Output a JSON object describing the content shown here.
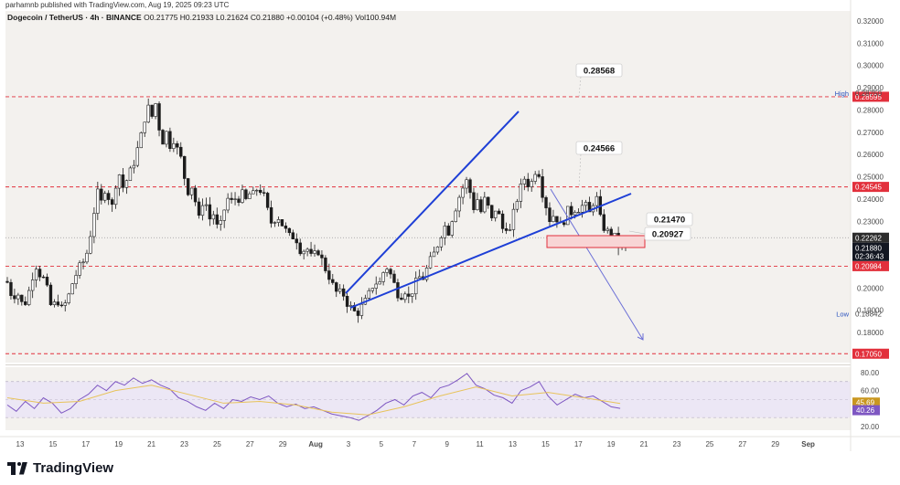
{
  "header": {
    "publisher": "parhamnb published with TradingView.com, Aug 19, 2025 09:23 UTC"
  },
  "symbol_line": {
    "name": "Dogecoin / TetherUS · 4h · BINANCE",
    "ohlc": "O0.21775 H0.21933 L0.21624 C0.21880 +0.00104 (+0.48%) Vol100.94M"
  },
  "branding": {
    "logo_text": "TradingView"
  },
  "colors": {
    "background": "#f3f1ee",
    "candle": "#1c1c1c",
    "trendline": "#1e3fd6",
    "level_line": "#e2303c",
    "level_label_bg": "#e2303c",
    "arrow": "#6b6fd6",
    "rsi_line": "#7e57c2",
    "rsi_ma": "#e8c35a",
    "rsi_band": "#ece7f5",
    "zone_fill": "#f8d5d5",
    "zone_border": "#e2303c"
  },
  "chart_data": {
    "type": "candlestick",
    "x_ticks": [
      "13",
      "15",
      "17",
      "19",
      "21",
      "23",
      "25",
      "27",
      "29",
      "Aug",
      "3",
      "5",
      "7",
      "9",
      "11",
      "13",
      "15",
      "17",
      "19",
      "21",
      "23",
      "25",
      "27",
      "29",
      "Sep"
    ],
    "y_ticks": [
      "0.32000",
      "0.31000",
      "0.30000",
      "0.29000",
      "0.28000",
      "0.27000",
      "0.26000",
      "0.25000",
      "0.24000",
      "0.23000",
      "0.22000",
      "0.21000",
      "0.20000",
      "0.19000",
      "0.18000",
      "0.17000"
    ],
    "y_range": [
      0.1665,
      0.3245
    ],
    "price_path": [
      [
        0,
        0.203
      ],
      [
        3,
        0.198
      ],
      [
        7,
        0.199
      ],
      [
        10,
        0.205
      ],
      [
        14,
        0.2
      ],
      [
        18,
        0.195
      ],
      [
        22,
        0.199
      ],
      [
        26,
        0.195
      ],
      [
        30,
        0.191
      ],
      [
        34,
        0.197
      ],
      [
        38,
        0.201
      ],
      [
        42,
        0.212
      ],
      [
        46,
        0.207
      ],
      [
        50,
        0.205
      ],
      [
        54,
        0.203
      ],
      [
        58,
        0.193
      ],
      [
        62,
        0.191
      ],
      [
        66,
        0.196
      ],
      [
        70,
        0.19
      ],
      [
        74,
        0.192
      ],
      [
        78,
        0.195
      ],
      [
        82,
        0.201
      ],
      [
        86,
        0.205
      ],
      [
        90,
        0.209
      ],
      [
        94,
        0.211
      ],
      [
        98,
        0.214
      ],
      [
        102,
        0.222
      ],
      [
        106,
        0.232
      ],
      [
        110,
        0.244
      ],
      [
        114,
        0.237
      ],
      [
        118,
        0.245
      ],
      [
        122,
        0.242
      ],
      [
        126,
        0.235
      ],
      [
        130,
        0.246
      ],
      [
        134,
        0.252
      ],
      [
        138,
        0.245
      ],
      [
        142,
        0.248
      ],
      [
        146,
        0.252
      ],
      [
        150,
        0.256
      ],
      [
        154,
        0.262
      ],
      [
        158,
        0.268
      ],
      [
        162,
        0.276
      ],
      [
        166,
        0.281
      ],
      [
        170,
        0.277
      ],
      [
        174,
        0.283
      ],
      [
        178,
        0.272
      ],
      [
        182,
        0.266
      ],
      [
        186,
        0.27
      ],
      [
        190,
        0.264
      ],
      [
        194,
        0.267
      ],
      [
        198,
        0.262
      ],
      [
        202,
        0.258
      ],
      [
        206,
        0.249
      ],
      [
        210,
        0.243
      ],
      [
        214,
        0.246
      ],
      [
        218,
        0.238
      ],
      [
        222,
        0.23
      ],
      [
        226,
        0.24
      ],
      [
        230,
        0.237
      ],
      [
        234,
        0.23
      ],
      [
        238,
        0.234
      ],
      [
        242,
        0.226
      ],
      [
        246,
        0.229
      ],
      [
        250,
        0.237
      ],
      [
        254,
        0.241
      ],
      [
        258,
        0.238
      ],
      [
        262,
        0.241
      ],
      [
        266,
        0.24
      ],
      [
        270,
        0.243
      ],
      [
        274,
        0.238
      ],
      [
        278,
        0.244
      ],
      [
        282,
        0.241
      ],
      [
        286,
        0.246
      ],
      [
        290,
        0.243
      ],
      [
        294,
        0.24
      ],
      [
        298,
        0.232
      ],
      [
        302,
        0.228
      ],
      [
        306,
        0.233
      ],
      [
        310,
        0.231
      ],
      [
        314,
        0.227
      ],
      [
        318,
        0.225
      ],
      [
        322,
        0.222
      ],
      [
        326,
        0.224
      ],
      [
        330,
        0.22
      ],
      [
        334,
        0.215
      ],
      [
        338,
        0.219
      ],
      [
        342,
        0.216
      ],
      [
        346,
        0.212
      ],
      [
        350,
        0.218
      ],
      [
        354,
        0.215
      ],
      [
        358,
        0.21
      ],
      [
        362,
        0.207
      ],
      [
        366,
        0.203
      ],
      [
        370,
        0.199
      ],
      [
        374,
        0.197
      ],
      [
        378,
        0.199
      ],
      [
        382,
        0.194
      ],
      [
        386,
        0.192
      ],
      [
        390,
        0.19
      ],
      [
        394,
        0.188
      ],
      [
        398,
        0.191
      ],
      [
        402,
        0.193
      ],
      [
        406,
        0.196
      ],
      [
        410,
        0.2
      ],
      [
        414,
        0.203
      ],
      [
        418,
        0.201
      ],
      [
        422,
        0.206
      ],
      [
        426,
        0.21
      ],
      [
        430,
        0.207
      ],
      [
        434,
        0.203
      ],
      [
        438,
        0.198
      ],
      [
        442,
        0.196
      ],
      [
        446,
        0.2
      ],
      [
        450,
        0.195
      ],
      [
        454,
        0.198
      ],
      [
        458,
        0.202
      ],
      [
        462,
        0.205
      ],
      [
        466,
        0.204
      ],
      [
        470,
        0.208
      ],
      [
        474,
        0.212
      ],
      [
        478,
        0.215
      ],
      [
        482,
        0.219
      ],
      [
        486,
        0.224
      ],
      [
        490,
        0.228
      ],
      [
        494,
        0.225
      ],
      [
        498,
        0.231
      ],
      [
        502,
        0.236
      ],
      [
        506,
        0.241
      ],
      [
        510,
        0.245
      ],
      [
        514,
        0.248
      ],
      [
        518,
        0.243
      ],
      [
        522,
        0.236
      ],
      [
        526,
        0.24
      ],
      [
        530,
        0.234
      ],
      [
        534,
        0.24
      ],
      [
        538,
        0.236
      ],
      [
        542,
        0.23
      ],
      [
        546,
        0.236
      ],
      [
        550,
        0.232
      ],
      [
        554,
        0.226
      ],
      [
        558,
        0.228
      ],
      [
        562,
        0.225
      ],
      [
        566,
        0.235
      ],
      [
        570,
        0.241
      ],
      [
        574,
        0.246
      ],
      [
        578,
        0.25
      ],
      [
        582,
        0.246
      ],
      [
        586,
        0.248
      ],
      [
        590,
        0.254
      ],
      [
        594,
        0.251
      ],
      [
        598,
        0.24
      ],
      [
        602,
        0.236
      ],
      [
        606,
        0.229
      ],
      [
        610,
        0.234
      ],
      [
        614,
        0.23
      ],
      [
        618,
        0.227
      ],
      [
        622,
        0.232
      ],
      [
        626,
        0.236
      ],
      [
        630,
        0.233
      ],
      [
        634,
        0.237
      ],
      [
        638,
        0.235
      ],
      [
        642,
        0.238
      ],
      [
        646,
        0.236
      ],
      [
        650,
        0.232
      ],
      [
        654,
        0.243
      ],
      [
        658,
        0.238
      ],
      [
        662,
        0.226
      ],
      [
        666,
        0.228
      ],
      [
        670,
        0.223
      ],
      [
        674,
        0.226
      ],
      [
        678,
        0.22
      ],
      [
        682,
        0.218
      ],
      [
        686,
        0.2188
      ]
    ],
    "rsi_path": [
      [
        0,
        44
      ],
      [
        10,
        37
      ],
      [
        20,
        48
      ],
      [
        30,
        40
      ],
      [
        40,
        52
      ],
      [
        50,
        46
      ],
      [
        60,
        35
      ],
      [
        70,
        40
      ],
      [
        80,
        50
      ],
      [
        90,
        56
      ],
      [
        100,
        66
      ],
      [
        110,
        60
      ],
      [
        120,
        70
      ],
      [
        130,
        66
      ],
      [
        140,
        74
      ],
      [
        150,
        68
      ],
      [
        160,
        72
      ],
      [
        170,
        66
      ],
      [
        180,
        62
      ],
      [
        190,
        52
      ],
      [
        200,
        48
      ],
      [
        210,
        42
      ],
      [
        220,
        38
      ],
      [
        230,
        46
      ],
      [
        240,
        40
      ],
      [
        250,
        50
      ],
      [
        260,
        48
      ],
      [
        270,
        53
      ],
      [
        280,
        50
      ],
      [
        290,
        54
      ],
      [
        300,
        46
      ],
      [
        310,
        42
      ],
      [
        320,
        45
      ],
      [
        330,
        40
      ],
      [
        340,
        42
      ],
      [
        350,
        38
      ],
      [
        360,
        34
      ],
      [
        370,
        32
      ],
      [
        380,
        30
      ],
      [
        390,
        27
      ],
      [
        400,
        32
      ],
      [
        410,
        38
      ],
      [
        420,
        46
      ],
      [
        430,
        50
      ],
      [
        440,
        44
      ],
      [
        450,
        54
      ],
      [
        460,
        58
      ],
      [
        470,
        52
      ],
      [
        480,
        63
      ],
      [
        490,
        66
      ],
      [
        500,
        72
      ],
      [
        510,
        79
      ],
      [
        520,
        66
      ],
      [
        530,
        62
      ],
      [
        540,
        55
      ],
      [
        550,
        52
      ],
      [
        560,
        46
      ],
      [
        570,
        60
      ],
      [
        580,
        64
      ],
      [
        590,
        70
      ],
      [
        600,
        54
      ],
      [
        610,
        44
      ],
      [
        620,
        50
      ],
      [
        630,
        56
      ],
      [
        640,
        52
      ],
      [
        650,
        54
      ],
      [
        660,
        48
      ],
      [
        670,
        42
      ],
      [
        680,
        40.26
      ]
    ],
    "rsi_ma_path": [
      [
        0,
        52
      ],
      [
        40,
        46
      ],
      [
        80,
        48
      ],
      [
        120,
        60
      ],
      [
        160,
        66
      ],
      [
        200,
        56
      ],
      [
        240,
        46
      ],
      [
        280,
        48
      ],
      [
        320,
        44
      ],
      [
        360,
        36
      ],
      [
        400,
        33
      ],
      [
        440,
        42
      ],
      [
        480,
        54
      ],
      [
        520,
        64
      ],
      [
        560,
        54
      ],
      [
        600,
        58
      ],
      [
        640,
        52
      ],
      [
        680,
        45.69
      ]
    ],
    "rsi_ticks": [
      "80.00",
      "60.00",
      "20.00"
    ],
    "rsi_range": [
      16,
      86
    ],
    "rsi_band": [
      30,
      70
    ],
    "rsi_labels": [
      {
        "value": 45.69,
        "text": "45.69",
        "color": "#c9971f"
      },
      {
        "value": 40.26,
        "text": "40.26",
        "color": "#7e57c2"
      }
    ],
    "levels": [
      {
        "value": 0.28595,
        "label": "0.28595",
        "kind": "red"
      },
      {
        "value": 0.24545,
        "label": "0.24545",
        "kind": "red"
      },
      {
        "value": 0.20984,
        "label": "0.20984",
        "kind": "red"
      },
      {
        "value": 0.1705,
        "label": "0.17050",
        "kind": "red"
      }
    ],
    "axis_markers": [
      {
        "value": 0.2875,
        "label": "0.28750",
        "tag": "High"
      },
      {
        "value": 0.18842,
        "label": "0.18842",
        "tag": "Low"
      }
    ],
    "current_price": {
      "value": 0.2188,
      "label": "0.21880",
      "countdown": "02:36:43",
      "ref_label": "0.22262",
      "ref_value": 0.22262
    },
    "callouts": [
      {
        "text": "0.28568",
        "value": 0.28568,
        "x": 655
      },
      {
        "text": "0.24566",
        "value": 0.24566,
        "x": 655
      },
      {
        "text": "0.21470",
        "value": 0.2147,
        "x": 732
      },
      {
        "text": "0.20927",
        "value": 0.20927,
        "x": 730
      }
    ]
  }
}
